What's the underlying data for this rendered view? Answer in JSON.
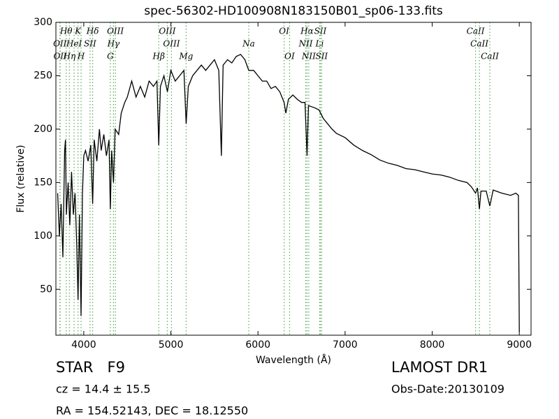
{
  "chart_data": {
    "type": "line",
    "title": "spec-56302-HD100908N183150B01_sp06-133.fits",
    "x_label": "Wavelength (Å)",
    "y_label": "Flux (relative)",
    "color": "#000000",
    "annotation_color": "#5aa85a",
    "xlim": [
      3680,
      9135
    ],
    "ylim": [
      7,
      300
    ],
    "xticks": [
      4000,
      5000,
      6000,
      7000,
      8000,
      9000
    ],
    "yticks": [
      50,
      100,
      150,
      200,
      250,
      300
    ],
    "x": [
      3700,
      3720,
      3740,
      3760,
      3780,
      3790,
      3800,
      3820,
      3840,
      3860,
      3880,
      3900,
      3920,
      3934,
      3950,
      3969,
      3985,
      4000,
      4020,
      4050,
      4080,
      4102,
      4120,
      4150,
      4180,
      4200,
      4230,
      4260,
      4290,
      4305,
      4320,
      4341,
      4360,
      4400,
      4430,
      4470,
      4500,
      4550,
      4600,
      4650,
      4700,
      4750,
      4800,
      4840,
      4861,
      4880,
      4920,
      4960,
      5000,
      5050,
      5100,
      5150,
      5175,
      5200,
      5250,
      5300,
      5350,
      5400,
      5450,
      5500,
      5550,
      5580,
      5600,
      5650,
      5700,
      5750,
      5800,
      5850,
      5894,
      5950,
      6000,
      6050,
      6100,
      6150,
      6200,
      6250,
      6300,
      6320,
      6350,
      6400,
      6450,
      6500,
      6540,
      6563,
      6580,
      6650,
      6700,
      6750,
      6800,
      6850,
      6900,
      7000,
      7100,
      7200,
      7300,
      7400,
      7500,
      7600,
      7700,
      7800,
      7900,
      8000,
      8100,
      8200,
      8300,
      8400,
      8450,
      8498,
      8520,
      8542,
      8560,
      8620,
      8662,
      8700,
      8800,
      8900,
      8960,
      8990,
      9000
    ],
    "values": [
      140,
      100,
      130,
      80,
      180,
      190,
      120,
      150,
      110,
      160,
      120,
      140,
      90,
      40,
      120,
      25,
      140,
      175,
      180,
      170,
      185,
      130,
      190,
      170,
      200,
      180,
      195,
      175,
      190,
      125,
      180,
      150,
      200,
      195,
      215,
      225,
      230,
      245,
      230,
      240,
      230,
      245,
      240,
      245,
      185,
      240,
      250,
      235,
      255,
      245,
      250,
      255,
      205,
      240,
      250,
      255,
      260,
      255,
      260,
      265,
      255,
      175,
      260,
      265,
      262,
      268,
      270,
      265,
      255,
      255,
      250,
      245,
      245,
      238,
      240,
      235,
      225,
      215,
      228,
      232,
      228,
      225,
      225,
      175,
      222,
      220,
      218,
      210,
      205,
      200,
      196,
      192,
      185,
      180,
      176,
      171,
      168,
      166,
      163,
      162,
      160,
      158,
      157,
      155,
      152,
      150,
      146,
      140,
      145,
      125,
      142,
      142,
      128,
      143,
      140,
      138,
      140,
      138,
      10
    ],
    "annotations": [
      [
        {
          "label": "Hθ",
          "x": 3798
        },
        {
          "label": "K",
          "x": 3934
        },
        {
          "label": "Hδ",
          "x": 4102
        },
        {
          "label": "OIII",
          "x": 4363
        },
        {
          "label": "OIII",
          "x": 4959
        },
        {
          "label": "OI",
          "x": 6300
        },
        {
          "label": "Hα",
          "x": 6563
        },
        {
          "label": "SII",
          "x": 6716
        },
        {
          "label": "CaII",
          "x": 8498
        }
      ],
      [
        {
          "label": "OII",
          "x": 3726
        },
        {
          "label": "HeI",
          "x": 3889
        },
        {
          "label": "SII",
          "x": 4072
        },
        {
          "label": "Hγ",
          "x": 4341
        },
        {
          "label": "OIII",
          "x": 5007
        },
        {
          "label": "Na",
          "x": 5894
        },
        {
          "label": "NII",
          "x": 6548
        },
        {
          "label": "Li",
          "x": 6708
        },
        {
          "label": "CaII",
          "x": 8542
        }
      ],
      [
        {
          "label": "OII",
          "x": 3729
        },
        {
          "label": "Hη",
          "x": 3835
        },
        {
          "label": "H",
          "x": 3969
        },
        {
          "label": "G",
          "x": 4305
        },
        {
          "label": "Hβ",
          "x": 4861
        },
        {
          "label": "Mg",
          "x": 5175
        },
        {
          "label": "OI",
          "x": 6363
        },
        {
          "label": "NII",
          "x": 6583
        },
        {
          "label": "SII",
          "x": 6731
        },
        {
          "label": "CaII",
          "x": 8662
        }
      ]
    ],
    "object": "STAR   F9",
    "redshift": "cz = 14.4 ± 15.5",
    "coords": "RA = 154.52143, DEC = 18.12550",
    "survey": "LAMOST DR1",
    "obs_date": "Obs-Date:20130109"
  }
}
